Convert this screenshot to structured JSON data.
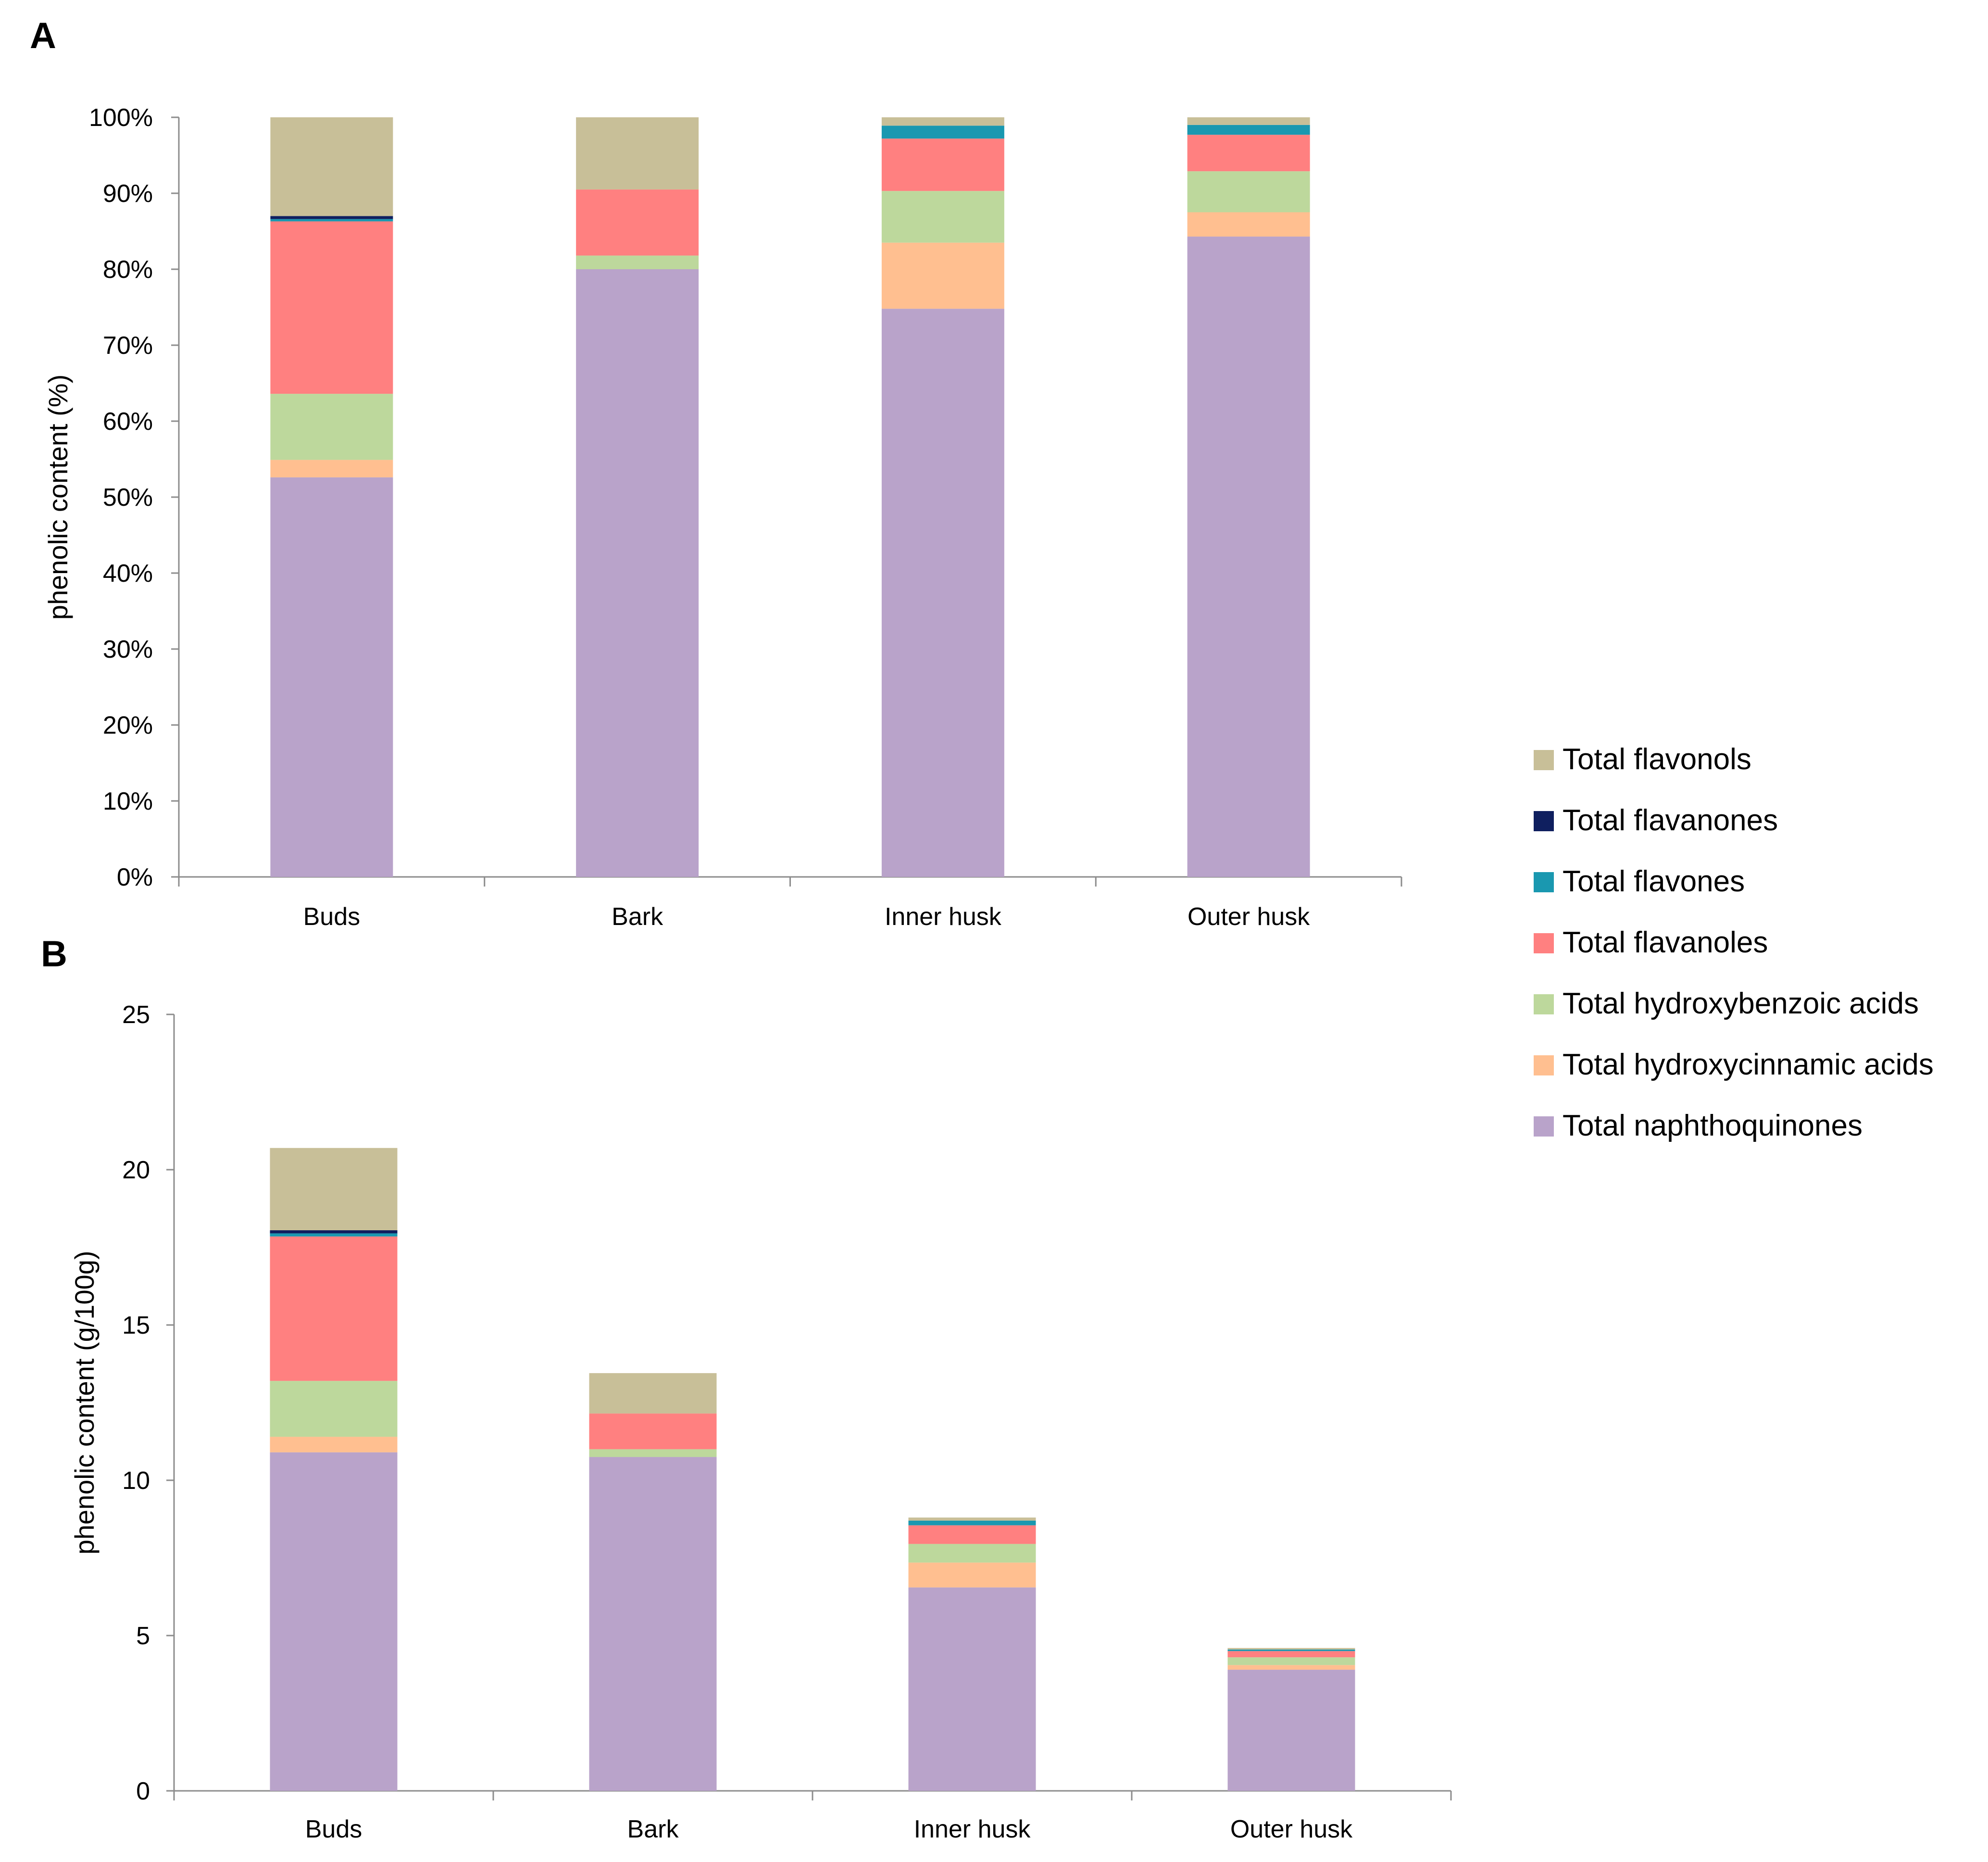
{
  "legend": [
    {
      "name": "Total flavonols",
      "color": "#c8bf98"
    },
    {
      "name": "Total flavanones",
      "color": "#0f1f5f"
    },
    {
      "name": "Total flavones",
      "color": "#1a98b0"
    },
    {
      "name": "Total flavanoles",
      "color": "#ff8080"
    },
    {
      "name": "Total hydroxybenzoic acids",
      "color": "#bdd89c"
    },
    {
      "name": "Total hydroxycinnamic acids",
      "color": "#ffbf90"
    },
    {
      "name": "Total naphthoquinones",
      "color": "#b9a3ca"
    }
  ],
  "chart_data": [
    {
      "panel": "A",
      "type": "bar",
      "stacked": true,
      "categories": [
        "Buds",
        "Bark",
        "Inner husk",
        "Outer husk"
      ],
      "ylabel": "phenolic content (%)",
      "xlabel": "",
      "ylim": [
        0,
        100
      ],
      "yticks": [
        0,
        10,
        20,
        30,
        40,
        50,
        60,
        70,
        80,
        90,
        100
      ],
      "ytick_labels": [
        "0%",
        "10%",
        "20%",
        "30%",
        "40%",
        "50%",
        "60%",
        "70%",
        "80%",
        "90%",
        "100%"
      ],
      "series": [
        {
          "name": "Total naphthoquinones",
          "color": "#b9a3ca",
          "values": [
            52.6,
            80.0,
            74.8,
            84.3
          ]
        },
        {
          "name": "Total hydroxycinnamic acids",
          "color": "#ffbf90",
          "values": [
            2.3,
            0.0,
            8.7,
            3.2
          ]
        },
        {
          "name": "Total hydroxybenzoic acids",
          "color": "#bdd89c",
          "values": [
            8.7,
            1.8,
            6.8,
            5.4
          ]
        },
        {
          "name": "Total flavanoles",
          "color": "#ff8080",
          "values": [
            22.7,
            8.7,
            6.9,
            4.8
          ]
        },
        {
          "name": "Total flavones",
          "color": "#1a98b0",
          "values": [
            0.3,
            0.0,
            1.7,
            1.3
          ]
        },
        {
          "name": "Total flavanones",
          "color": "#0f1f5f",
          "values": [
            0.4,
            0.0,
            0.0,
            0.0
          ]
        },
        {
          "name": "Total flavonols",
          "color": "#c8bf98",
          "values": [
            13.0,
            9.5,
            1.1,
            1.0
          ]
        }
      ]
    },
    {
      "panel": "B",
      "type": "bar",
      "stacked": true,
      "categories": [
        "Buds",
        "Bark",
        "Inner husk",
        "Outer husk"
      ],
      "ylabel": "phenolic content (g/100g)",
      "xlabel": "",
      "ylim": [
        0,
        25
      ],
      "yticks": [
        0,
        5,
        10,
        15,
        20,
        25
      ],
      "ytick_labels": [
        "0",
        "5",
        "10",
        "15",
        "20",
        "25"
      ],
      "series": [
        {
          "name": "Total naphthoquinones",
          "color": "#b9a3ca",
          "values": [
            10.9,
            10.75,
            6.55,
            3.9
          ]
        },
        {
          "name": "Total hydroxycinnamic acids",
          "color": "#ffbf90",
          "values": [
            0.5,
            0.0,
            0.8,
            0.15
          ]
        },
        {
          "name": "Total hydroxybenzoic acids",
          "color": "#bdd89c",
          "values": [
            1.8,
            0.25,
            0.6,
            0.25
          ]
        },
        {
          "name": "Total flavanoles",
          "color": "#ff8080",
          "values": [
            4.65,
            1.15,
            0.6,
            0.2
          ]
        },
        {
          "name": "Total flavones",
          "color": "#1a98b0",
          "values": [
            0.1,
            0.0,
            0.15,
            0.05
          ]
        },
        {
          "name": "Total flavanones",
          "color": "#0f1f5f",
          "values": [
            0.1,
            0.0,
            0.0,
            0.0
          ]
        },
        {
          "name": "Total flavonols",
          "color": "#c8bf98",
          "values": [
            2.65,
            1.3,
            0.1,
            0.05
          ]
        }
      ]
    }
  ]
}
